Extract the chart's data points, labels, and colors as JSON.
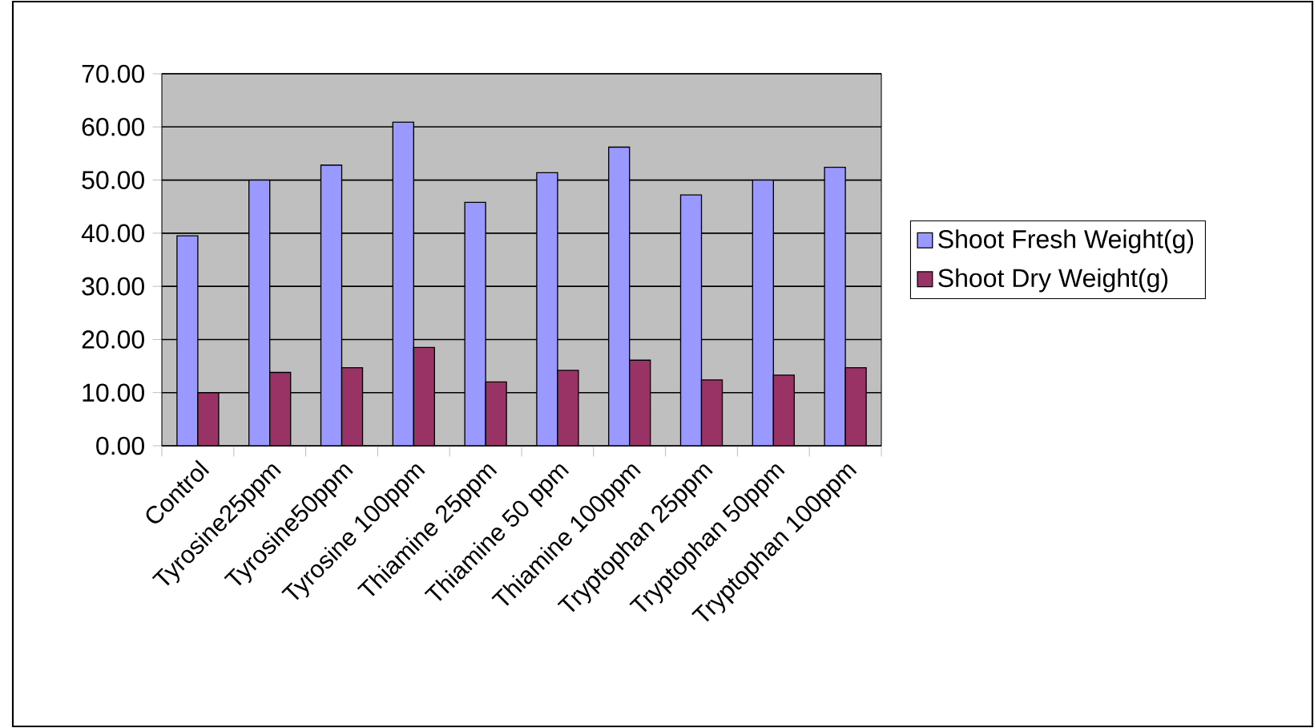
{
  "chart_data": {
    "type": "bar",
    "categories": [
      "Control",
      "Tyrosine25ppm",
      "Tyrosine50ppm",
      "Tyrosine 100ppm",
      "Thiamine 25ppm",
      "Thiamine 50 ppm",
      "Thiamine 100ppm",
      "Tryptophan 25ppm",
      "Tryptophan 50ppm",
      "Tryptophan 100ppm"
    ],
    "series": [
      {
        "name": "Shoot Fresh Weight(g)",
        "color": "#9999ff",
        "values": [
          39.5,
          50.0,
          52.8,
          60.9,
          45.8,
          51.4,
          56.2,
          47.2,
          50.0,
          52.4
        ]
      },
      {
        "name": "Shoot Dry Weight(g)",
        "color": "#993366",
        "values": [
          10.0,
          13.8,
          14.7,
          18.5,
          12.0,
          14.2,
          16.1,
          12.4,
          13.3,
          14.7
        ]
      }
    ],
    "ylim": [
      0,
      70
    ],
    "yticks": [
      {
        "value": 0,
        "label": "0.00"
      },
      {
        "value": 10,
        "label": "10.00"
      },
      {
        "value": 20,
        "label": "20.00"
      },
      {
        "value": 30,
        "label": "30.00"
      },
      {
        "value": 40,
        "label": "40.00"
      },
      {
        "value": 50,
        "label": "50.00"
      },
      {
        "value": 60,
        "label": "60.00"
      },
      {
        "value": 70,
        "label": "70.00"
      }
    ],
    "grid": "y",
    "legend": "right"
  }
}
